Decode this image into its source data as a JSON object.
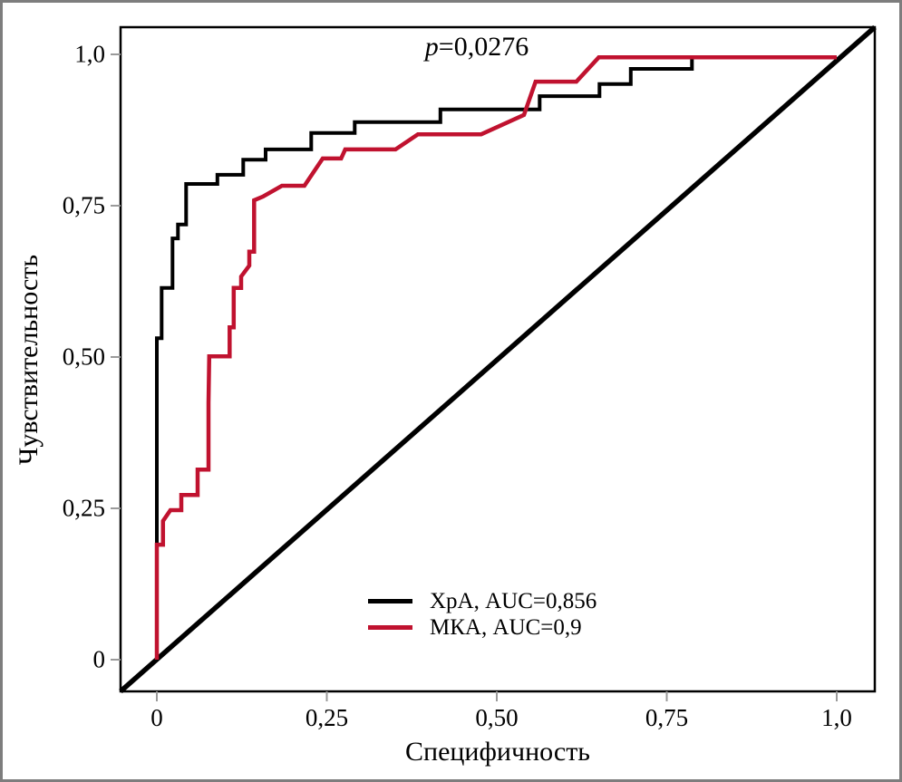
{
  "frame": {
    "border_color": "#7d7d7d",
    "background": "#ffffff"
  },
  "annotation": {
    "p_label": "p",
    "p_value": "=0,0276"
  },
  "axes": {
    "x": {
      "label": "Специфичность",
      "tick_labels": [
        "0",
        "0,25",
        "0,50",
        "0,75",
        "1,0"
      ],
      "tick_values": [
        0,
        0.25,
        0.5,
        0.75,
        1
      ]
    },
    "y": {
      "label": "Чувствительность",
      "tick_labels": [
        "0",
        "0,25",
        "0,50",
        "0,75",
        "1,0"
      ],
      "tick_values": [
        0,
        0.25,
        0.5,
        0.75,
        1
      ]
    }
  },
  "legend": {
    "items": [
      {
        "label": "ХрА, AUC=0,856",
        "color": "#000000"
      },
      {
        "label": "МКА, AUC=0,9",
        "color": "#c0122f"
      }
    ]
  },
  "chart_data": {
    "type": "line",
    "subtype": "roc-curves",
    "title": "",
    "xlabel": "Специфичность",
    "ylabel": "Чувствительность",
    "xlim": [
      0,
      1
    ],
    "ylim": [
      0,
      1
    ],
    "grid": false,
    "legend_position": "inside-lower-right",
    "annotations": [
      {
        "text": "p=0,0276",
        "x": 0.46,
        "y": 1.0
      }
    ],
    "diagonal_reference_line": true,
    "axis_tick_labels_x": [
      "0",
      "0,25",
      "0,50",
      "0,75",
      "1,0"
    ],
    "axis_tick_labels_y": [
      "0",
      "0,25",
      "0,50",
      "0,75",
      "1,0"
    ],
    "series": [
      {
        "name": "ХрА, AUC=0,856",
        "auc": "0,856",
        "p_value_comparison": "0,0276",
        "color": "#000000",
        "points": [
          [
            0,
            0
          ],
          [
            0,
            0.531
          ],
          [
            0.007,
            0.531
          ],
          [
            0.007,
            0.614
          ],
          [
            0.023,
            0.614
          ],
          [
            0.023,
            0.696
          ],
          [
            0.031,
            0.696
          ],
          [
            0.031,
            0.719
          ],
          [
            0.043,
            0.719
          ],
          [
            0.043,
            0.786
          ],
          [
            0.089,
            0.786
          ],
          [
            0.089,
            0.801
          ],
          [
            0.127,
            0.801
          ],
          [
            0.127,
            0.826
          ],
          [
            0.16,
            0.826
          ],
          [
            0.16,
            0.843
          ],
          [
            0.227,
            0.843
          ],
          [
            0.227,
            0.87
          ],
          [
            0.291,
            0.87
          ],
          [
            0.291,
            0.888
          ],
          [
            0.417,
            0.888
          ],
          [
            0.417,
            0.909
          ],
          [
            0.563,
            0.909
          ],
          [
            0.563,
            0.931
          ],
          [
            0.651,
            0.931
          ],
          [
            0.651,
            0.951
          ],
          [
            0.697,
            0.951
          ],
          [
            0.697,
            0.976
          ],
          [
            0.787,
            0.976
          ],
          [
            0.787,
            0.995
          ],
          [
            1,
            0.995
          ]
        ]
      },
      {
        "name": "МКА, AUC=0,9",
        "auc": "0,9",
        "p_value_comparison": "0,0276",
        "color": "#c0122f",
        "points": [
          [
            0,
            0
          ],
          [
            0,
            0.19
          ],
          [
            0.009,
            0.19
          ],
          [
            0.009,
            0.229
          ],
          [
            0.02,
            0.247
          ],
          [
            0.036,
            0.247
          ],
          [
            0.036,
            0.272
          ],
          [
            0.06,
            0.272
          ],
          [
            0.06,
            0.314
          ],
          [
            0.076,
            0.314
          ],
          [
            0.076,
            0.424
          ],
          [
            0.077,
            0.501
          ],
          [
            0.107,
            0.501
          ],
          [
            0.107,
            0.549
          ],
          [
            0.113,
            0.549
          ],
          [
            0.113,
            0.614
          ],
          [
            0.124,
            0.614
          ],
          [
            0.124,
            0.633
          ],
          [
            0.136,
            0.651
          ],
          [
            0.136,
            0.674
          ],
          [
            0.143,
            0.674
          ],
          [
            0.143,
            0.759
          ],
          [
            0.156,
            0.765
          ],
          [
            0.184,
            0.783
          ],
          [
            0.217,
            0.783
          ],
          [
            0.244,
            0.828
          ],
          [
            0.271,
            0.828
          ],
          [
            0.277,
            0.843
          ],
          [
            0.351,
            0.843
          ],
          [
            0.384,
            0.868
          ],
          [
            0.477,
            0.868
          ],
          [
            0.54,
            0.9
          ],
          [
            0.557,
            0.955
          ],
          [
            0.617,
            0.955
          ],
          [
            0.65,
            0.995
          ],
          [
            1,
            0.995
          ]
        ]
      }
    ]
  }
}
